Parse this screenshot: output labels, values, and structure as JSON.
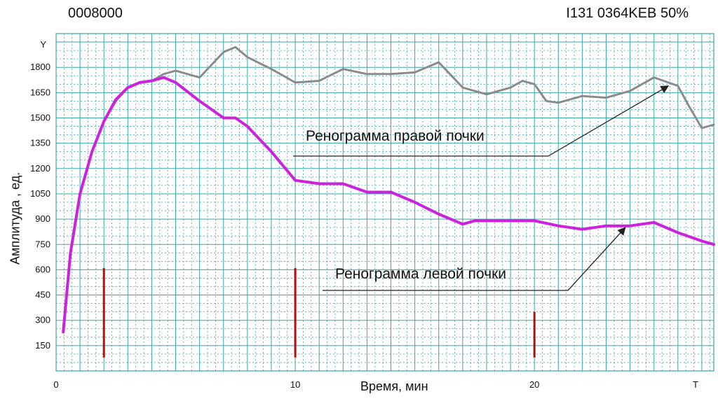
{
  "header": {
    "left": "0008000",
    "right": "I131  0364KEB  50%"
  },
  "chart_data": {
    "type": "line",
    "xlabel": "Время, мин",
    "ylabel": "Амплитуда , ед.",
    "x_axis_name": "T",
    "y_axis_name": "Y",
    "xlim": [
      0,
      27.5
    ],
    "ylim": [
      0,
      2000
    ],
    "x_ticks": [
      0,
      10,
      20
    ],
    "y_ticks": [
      150,
      300,
      450,
      600,
      750,
      900,
      1050,
      1200,
      1350,
      1500,
      1650,
      1800
    ],
    "grid": true,
    "colors": {
      "right": "#8a8a8a",
      "left": "#cc22dd",
      "markers": "#b01010",
      "grid": "#3aa7a7"
    },
    "series": [
      {
        "key": "right",
        "x": [
          0.3,
          0.6,
          1.0,
          1.5,
          2.0,
          2.5,
          3.0,
          3.5,
          4.0,
          4.5,
          5.0,
          6.0,
          7.0,
          7.5,
          8.0,
          9.0,
          10.0,
          11.0,
          12.0,
          13.0,
          14.0,
          15.0,
          16.0,
          17.0,
          18.0,
          19.0,
          19.5,
          20.0,
          20.5,
          21.0,
          22.0,
          23.0,
          24.0,
          25.0,
          26.0,
          26.5,
          27.0,
          27.5
        ],
        "y": [
          250,
          700,
          1050,
          1300,
          1480,
          1600,
          1680,
          1710,
          1720,
          1760,
          1780,
          1740,
          1890,
          1920,
          1860,
          1790,
          1710,
          1720,
          1790,
          1760,
          1760,
          1770,
          1830,
          1680,
          1640,
          1680,
          1720,
          1700,
          1600,
          1590,
          1630,
          1620,
          1660,
          1740,
          1690,
          1560,
          1440,
          1460
        ]
      },
      {
        "key": "left",
        "x": [
          0.3,
          0.6,
          1.0,
          1.5,
          2.0,
          2.5,
          3.0,
          3.5,
          4.0,
          4.5,
          5.0,
          6.0,
          7.0,
          7.5,
          8.0,
          9.0,
          10.0,
          11.0,
          12.0,
          13.0,
          14.0,
          15.0,
          16.0,
          17.0,
          17.5,
          18.0,
          19.0,
          20.0,
          21.0,
          22.0,
          23.0,
          24.0,
          25.0,
          26.0,
          27.0,
          27.5
        ],
        "y": [
          230,
          700,
          1050,
          1300,
          1480,
          1610,
          1680,
          1710,
          1720,
          1740,
          1710,
          1600,
          1500,
          1500,
          1450,
          1300,
          1130,
          1110,
          1110,
          1060,
          1060,
          1000,
          930,
          870,
          890,
          890,
          890,
          890,
          860,
          840,
          860,
          860,
          880,
          820,
          770,
          750
        ]
      }
    ],
    "markers": [
      {
        "x": 2,
        "y0": 80,
        "y1": 610
      },
      {
        "x": 10,
        "y0": 80,
        "y1": 610
      },
      {
        "x": 20,
        "y0": 80,
        "y1": 350
      }
    ],
    "annotations": [
      {
        "text": "Ренограмма правой почки",
        "target_series": "right",
        "target_x": 25.6,
        "target_y": 1690
      },
      {
        "text": "Ренограмма левой почки",
        "target_series": "left",
        "target_x": 23.8,
        "target_y": 850
      }
    ]
  }
}
